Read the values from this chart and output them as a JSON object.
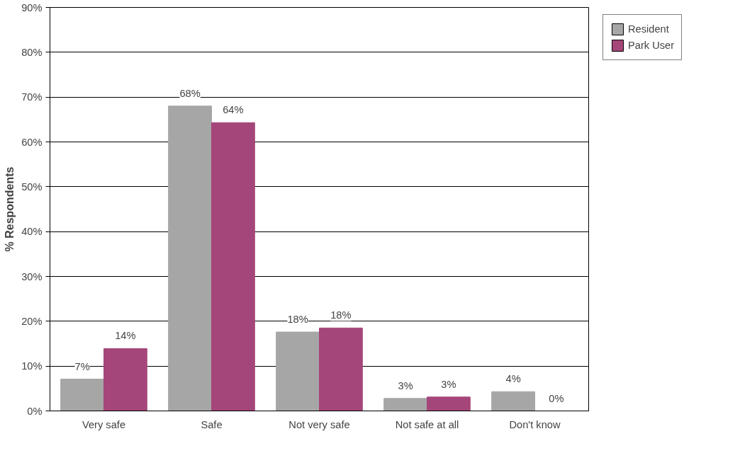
{
  "chart_data": {
    "type": "bar",
    "ylabel": "% Respondents",
    "categories": [
      "Very safe",
      "Safe",
      "Not very safe",
      "Not safe at all",
      "Don't know"
    ],
    "series": [
      {
        "name": "Resident",
        "color": "#a6a6a6",
        "values": [
          7.1,
          68.0,
          17.6,
          2.8,
          4.3
        ],
        "value_labels": [
          "7%",
          "68%",
          "18%",
          "3%",
          "4%"
        ]
      },
      {
        "name": "Park User",
        "color": "#a5467a",
        "values": [
          13.9,
          64.3,
          18.5,
          3.1,
          0
        ],
        "value_labels": [
          "14%",
          "64%",
          "18%",
          "3%",
          "0%"
        ]
      }
    ],
    "ylim": [
      0,
      90
    ],
    "yticks": [
      {
        "value": 0,
        "label": "0%"
      },
      {
        "value": 10,
        "label": "10%"
      },
      {
        "value": 20,
        "label": "20%"
      },
      {
        "value": 30,
        "label": "30%"
      },
      {
        "value": 40,
        "label": "40%"
      },
      {
        "value": 50,
        "label": "50%"
      },
      {
        "value": 60,
        "label": "60%"
      },
      {
        "value": 70,
        "label": "70%"
      },
      {
        "value": 80,
        "label": "80%"
      },
      {
        "value": 90,
        "label": "90%"
      }
    ],
    "grid": "y",
    "legend": "right"
  }
}
